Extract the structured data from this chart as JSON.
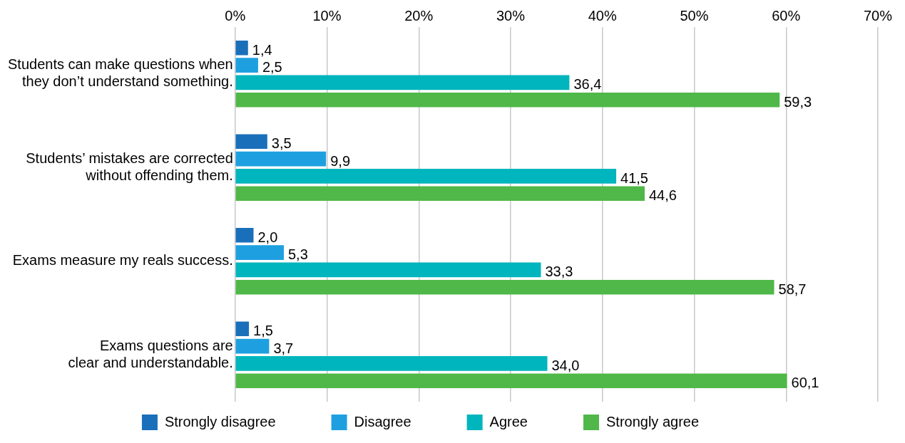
{
  "chart_data": {
    "type": "bar",
    "orientation": "horizontal",
    "categories": [
      "Students can make questions when they don’t understand something.",
      "Students’ mistakes are corrected without offending them.",
      "Exams measure my reals success.",
      "Exams questions are clear and understandable."
    ],
    "series": [
      {
        "name": "Strongly disagree",
        "color": "#1a6fba",
        "values": [
          1.4,
          3.5,
          2.0,
          1.5
        ],
        "value_labels": [
          "1,4",
          "3,5",
          "2,0",
          "1,5"
        ]
      },
      {
        "name": "Disagree",
        "color": "#1ea0e0",
        "values": [
          2.5,
          9.9,
          5.3,
          3.7
        ],
        "value_labels": [
          "2,5",
          "9,9",
          "5,3",
          "3,7"
        ]
      },
      {
        "name": "Agree",
        "color": "#00b5bd",
        "values": [
          36.4,
          41.5,
          33.3,
          34.0
        ],
        "value_labels": [
          "36,4",
          "41,5",
          "33,3",
          "34,0"
        ]
      },
      {
        "name": "Strongly agree",
        "color": "#50b848",
        "values": [
          59.3,
          44.6,
          58.7,
          60.1
        ],
        "value_labels": [
          "59,3",
          "44,6",
          "58,7",
          "60,1"
        ]
      }
    ],
    "xlim": [
      0,
      70
    ],
    "xticks": [
      {
        "value": 0,
        "label": "0%"
      },
      {
        "value": 10,
        "label": "10%"
      },
      {
        "value": 20,
        "label": "20%"
      },
      {
        "value": 30,
        "label": "30%"
      },
      {
        "value": 40,
        "label": "40%"
      },
      {
        "value": 50,
        "label": "50%"
      },
      {
        "value": 60,
        "label": "60%"
      },
      {
        "value": 70,
        "label": "70%"
      }
    ],
    "grid": "x",
    "legend": "bottom"
  }
}
